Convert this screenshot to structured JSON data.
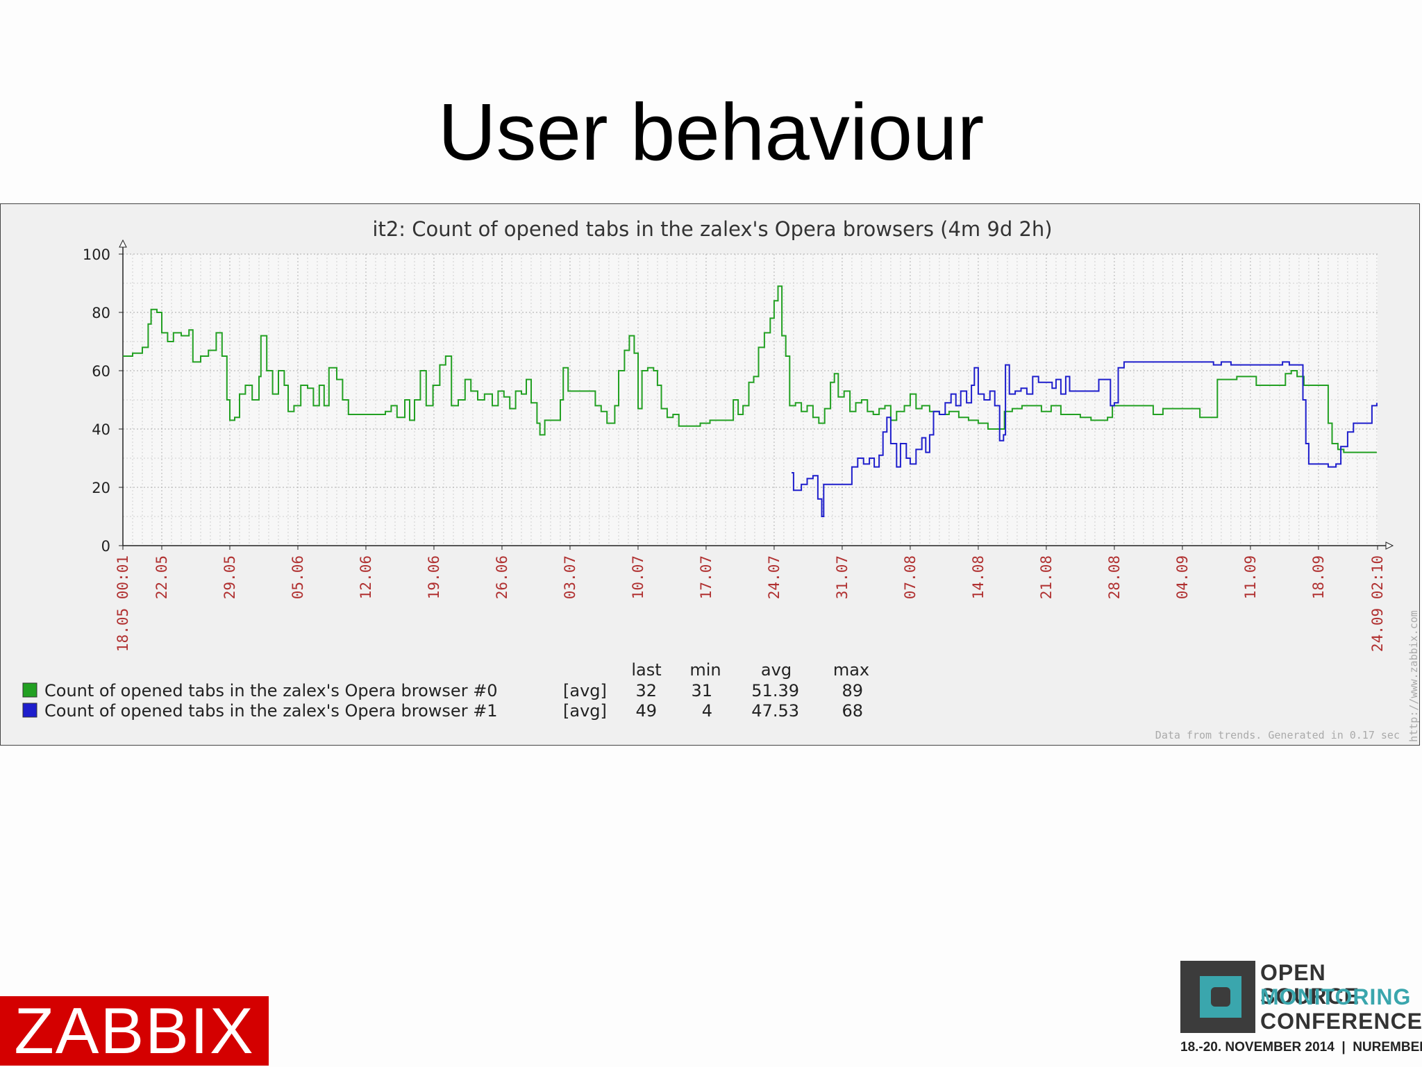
{
  "slide": {
    "title": "User behaviour"
  },
  "graph": {
    "title": "it2: Count of opened tabs in the zalex's Opera browsers  (4m 9d 2h)",
    "legend_headers": [
      "last",
      "min",
      "avg",
      "max"
    ],
    "legend": [
      {
        "color": "#22a022",
        "name": "Count of opened tabs in the zalex's Opera browser #0",
        "func": "[avg]",
        "last": "32",
        "min": "31",
        "avg": "51.39",
        "max": "89"
      },
      {
        "color": "#1e1ecc",
        "name": "Count of opened tabs in the zalex's Opera browser #1",
        "func": "[avg]",
        "last": "49",
        "min": "4",
        "avg": "47.53",
        "max": "68"
      }
    ],
    "footer": "Data from trends. Generated in 0.17 sec",
    "watermark": "http://www.zabbix.com"
  },
  "chart_data": {
    "type": "line",
    "xlim": [
      0,
      129.08
    ],
    "ylim": [
      0,
      100
    ],
    "yticks": [
      0,
      20,
      40,
      60,
      80,
      100
    ],
    "grid": true,
    "xtick_labels": [
      {
        "x": 0,
        "label": "18.05 00:01"
      },
      {
        "x": 4,
        "label": "22.05"
      },
      {
        "x": 11,
        "label": "29.05"
      },
      {
        "x": 18,
        "label": "05.06"
      },
      {
        "x": 25,
        "label": "12.06"
      },
      {
        "x": 32,
        "label": "19.06"
      },
      {
        "x": 39,
        "label": "26.06"
      },
      {
        "x": 46,
        "label": "03.07"
      },
      {
        "x": 53,
        "label": "10.07"
      },
      {
        "x": 60,
        "label": "17.07"
      },
      {
        "x": 67,
        "label": "24.07"
      },
      {
        "x": 74,
        "label": "31.07"
      },
      {
        "x": 81,
        "label": "07.08"
      },
      {
        "x": 88,
        "label": "14.08"
      },
      {
        "x": 95,
        "label": "21.08"
      },
      {
        "x": 102,
        "label": "28.08"
      },
      {
        "x": 109,
        "label": "04.09"
      },
      {
        "x": 116,
        "label": "11.09"
      },
      {
        "x": 123,
        "label": "18.09"
      },
      {
        "x": 129.08,
        "label": "24.09 02:10"
      }
    ],
    "series": [
      {
        "name": "Count of opened tabs in the zalex's Opera browser #0",
        "color": "#22a022",
        "points": [
          [
            0,
            65
          ],
          [
            1,
            66
          ],
          [
            2,
            68
          ],
          [
            2.6,
            76
          ],
          [
            2.9,
            81
          ],
          [
            3.5,
            80
          ],
          [
            4,
            73
          ],
          [
            4.6,
            70
          ],
          [
            5.2,
            73
          ],
          [
            6,
            72
          ],
          [
            6.8,
            74
          ],
          [
            7.2,
            63
          ],
          [
            8,
            65
          ],
          [
            8.8,
            67
          ],
          [
            9.6,
            73
          ],
          [
            10.2,
            65
          ],
          [
            10.7,
            50
          ],
          [
            11,
            43
          ],
          [
            11.5,
            44
          ],
          [
            12,
            52
          ],
          [
            12.6,
            55
          ],
          [
            13.3,
            50
          ],
          [
            14,
            58
          ],
          [
            14.2,
            72
          ],
          [
            14.8,
            60
          ],
          [
            15.4,
            52
          ],
          [
            16,
            60
          ],
          [
            16.6,
            55
          ],
          [
            17,
            46
          ],
          [
            17.6,
            48
          ],
          [
            18.3,
            55
          ],
          [
            19,
            54
          ],
          [
            19.6,
            48
          ],
          [
            20.2,
            55
          ],
          [
            20.7,
            48
          ],
          [
            21.2,
            61
          ],
          [
            22,
            57
          ],
          [
            22.6,
            50
          ],
          [
            23.2,
            45
          ],
          [
            24,
            45
          ],
          [
            25,
            45
          ],
          [
            26,
            45
          ],
          [
            27,
            46
          ],
          [
            27.6,
            48
          ],
          [
            28.2,
            44
          ],
          [
            29,
            50
          ],
          [
            29.5,
            43
          ],
          [
            30,
            50
          ],
          [
            30.6,
            60
          ],
          [
            31.2,
            48
          ],
          [
            31.9,
            55
          ],
          [
            32.6,
            62
          ],
          [
            33.2,
            65
          ],
          [
            33.8,
            48
          ],
          [
            34.5,
            50
          ],
          [
            35.2,
            57
          ],
          [
            35.8,
            53
          ],
          [
            36.5,
            50
          ],
          [
            37.2,
            52
          ],
          [
            38,
            48
          ],
          [
            38.6,
            53
          ],
          [
            39.2,
            51
          ],
          [
            39.8,
            47
          ],
          [
            40.4,
            53
          ],
          [
            41,
            52
          ],
          [
            41.5,
            57
          ],
          [
            42,
            49
          ],
          [
            42.6,
            42
          ],
          [
            42.9,
            38
          ],
          [
            43.4,
            43
          ],
          [
            44.5,
            43
          ],
          [
            45,
            50
          ],
          [
            45.3,
            61
          ],
          [
            45.8,
            53
          ],
          [
            46.5,
            53
          ],
          [
            47.5,
            53
          ],
          [
            48.6,
            48
          ],
          [
            49.2,
            46
          ],
          [
            49.8,
            42
          ],
          [
            50.6,
            48
          ],
          [
            51,
            60
          ],
          [
            51.6,
            67
          ],
          [
            52.1,
            72
          ],
          [
            52.6,
            66
          ],
          [
            53,
            47
          ],
          [
            53.4,
            60
          ],
          [
            54,
            61
          ],
          [
            54.6,
            60
          ],
          [
            55,
            55
          ],
          [
            55.4,
            47
          ],
          [
            56,
            44
          ],
          [
            56.6,
            45
          ],
          [
            57.2,
            41
          ],
          [
            58,
            41
          ],
          [
            59.4,
            42
          ],
          [
            60.4,
            43
          ],
          [
            61.5,
            43
          ],
          [
            62.4,
            43
          ],
          [
            62.8,
            50
          ],
          [
            63.3,
            45
          ],
          [
            63.8,
            48
          ],
          [
            64.4,
            56
          ],
          [
            64.9,
            58
          ],
          [
            65.4,
            68
          ],
          [
            66,
            73
          ],
          [
            66.6,
            78
          ],
          [
            67,
            84
          ],
          [
            67.4,
            89
          ],
          [
            67.8,
            72
          ],
          [
            68.2,
            65
          ],
          [
            68.6,
            48
          ],
          [
            69.2,
            49
          ],
          [
            69.8,
            46
          ],
          [
            70.4,
            48
          ],
          [
            71,
            44
          ],
          [
            71.6,
            42
          ],
          [
            72.2,
            47
          ],
          [
            72.8,
            56
          ],
          [
            73.2,
            59
          ],
          [
            73.6,
            51
          ],
          [
            74.2,
            53
          ],
          [
            74.8,
            46
          ],
          [
            75.4,
            49
          ],
          [
            76,
            50
          ],
          [
            76.6,
            46
          ],
          [
            77.2,
            45
          ],
          [
            77.8,
            47
          ],
          [
            78.4,
            48
          ],
          [
            79,
            43
          ],
          [
            79.6,
            46
          ],
          [
            80.4,
            48
          ],
          [
            81,
            52
          ],
          [
            81.6,
            47
          ],
          [
            82.2,
            48
          ],
          [
            83,
            46
          ],
          [
            84,
            45
          ],
          [
            85,
            46
          ],
          [
            86,
            44
          ],
          [
            87,
            43
          ],
          [
            88,
            42
          ],
          [
            89,
            40
          ],
          [
            90,
            40
          ],
          [
            90.7,
            46
          ],
          [
            91.5,
            47
          ],
          [
            92.5,
            48
          ],
          [
            93.5,
            48
          ],
          [
            94.5,
            46
          ],
          [
            95.5,
            48
          ],
          [
            96.5,
            45
          ],
          [
            97.5,
            45
          ],
          [
            98.5,
            44
          ],
          [
            99.6,
            43
          ],
          [
            100.5,
            43
          ],
          [
            101.3,
            44
          ],
          [
            101.8,
            48
          ],
          [
            103,
            48
          ],
          [
            104,
            48
          ],
          [
            105,
            48
          ],
          [
            106,
            45
          ],
          [
            107,
            47
          ],
          [
            108,
            47
          ],
          [
            109,
            47
          ],
          [
            110,
            47
          ],
          [
            110.8,
            44
          ],
          [
            112,
            44
          ],
          [
            112.6,
            57
          ],
          [
            113.6,
            57
          ],
          [
            114.6,
            58
          ],
          [
            115.6,
            58
          ],
          [
            116.6,
            55
          ],
          [
            117.6,
            55
          ],
          [
            118.6,
            55
          ],
          [
            119.6,
            59
          ],
          [
            120.2,
            60
          ],
          [
            120.8,
            58
          ],
          [
            121.5,
            55
          ],
          [
            122.6,
            55
          ],
          [
            123.4,
            55
          ],
          [
            124,
            42
          ],
          [
            124.4,
            35
          ],
          [
            125,
            33
          ],
          [
            125.6,
            32
          ],
          [
            126.8,
            32
          ],
          [
            128,
            32
          ],
          [
            129,
            32
          ]
        ]
      },
      {
        "name": "Count of opened tabs in the zalex's Opera browser #1",
        "color": "#1e1ecc",
        "points": [
          [
            68.8,
            25
          ],
          [
            69,
            19
          ],
          [
            69.8,
            21
          ],
          [
            70.4,
            23
          ],
          [
            71,
            24
          ],
          [
            71.5,
            16
          ],
          [
            71.9,
            10
          ],
          [
            72.1,
            21
          ],
          [
            73,
            21
          ],
          [
            74,
            21
          ],
          [
            74.6,
            21
          ],
          [
            75,
            27
          ],
          [
            75.6,
            30
          ],
          [
            76.2,
            28
          ],
          [
            76.8,
            30
          ],
          [
            77.3,
            27
          ],
          [
            77.8,
            31
          ],
          [
            78.2,
            39
          ],
          [
            78.6,
            44
          ],
          [
            79,
            35
          ],
          [
            79.6,
            27
          ],
          [
            80,
            35
          ],
          [
            80.6,
            30
          ],
          [
            81,
            28
          ],
          [
            81.6,
            33
          ],
          [
            82.2,
            37
          ],
          [
            82.6,
            32
          ],
          [
            83,
            38
          ],
          [
            83.4,
            46
          ],
          [
            84,
            45
          ],
          [
            84.6,
            49
          ],
          [
            85.2,
            52
          ],
          [
            85.7,
            48
          ],
          [
            86.2,
            53
          ],
          [
            86.8,
            49
          ],
          [
            87.3,
            55
          ],
          [
            87.6,
            61
          ],
          [
            88,
            52
          ],
          [
            88.6,
            50
          ],
          [
            89.2,
            53
          ],
          [
            89.7,
            48
          ],
          [
            90.2,
            36
          ],
          [
            90.6,
            38
          ],
          [
            90.8,
            62
          ],
          [
            91.2,
            52
          ],
          [
            91.8,
            53
          ],
          [
            92.4,
            54
          ],
          [
            93,
            52
          ],
          [
            93.6,
            58
          ],
          [
            94.2,
            56
          ],
          [
            95,
            56
          ],
          [
            95.6,
            54
          ],
          [
            96,
            57
          ],
          [
            96.5,
            52
          ],
          [
            97,
            58
          ],
          [
            97.4,
            53
          ],
          [
            98,
            53
          ],
          [
            99,
            53
          ],
          [
            100,
            53
          ],
          [
            100.4,
            57
          ],
          [
            101,
            57
          ],
          [
            101.4,
            57
          ],
          [
            101.6,
            48
          ],
          [
            102,
            49
          ],
          [
            102.4,
            61
          ],
          [
            103,
            63
          ],
          [
            105,
            63
          ],
          [
            107,
            63
          ],
          [
            109,
            63
          ],
          [
            111,
            63
          ],
          [
            112.2,
            62
          ],
          [
            113,
            63
          ],
          [
            114,
            62
          ],
          [
            116,
            62
          ],
          [
            118,
            62
          ],
          [
            119.3,
            63
          ],
          [
            120,
            62
          ],
          [
            121,
            62
          ],
          [
            121.4,
            50
          ],
          [
            121.7,
            35
          ],
          [
            122,
            28
          ],
          [
            122.8,
            28
          ],
          [
            124,
            27
          ],
          [
            124.8,
            28
          ],
          [
            125.3,
            34
          ],
          [
            126,
            39
          ],
          [
            126.6,
            42
          ],
          [
            128,
            42
          ],
          [
            128.5,
            48
          ],
          [
            129,
            49
          ]
        ]
      }
    ]
  }
}
